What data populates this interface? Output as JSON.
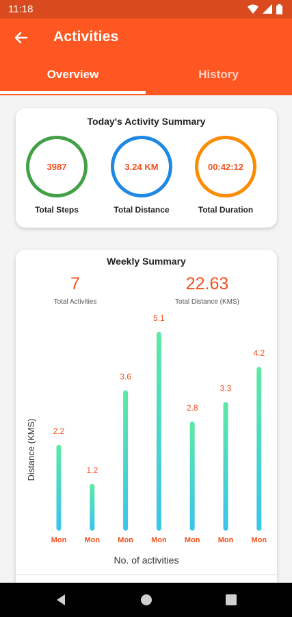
{
  "status_bar": {
    "time": "11:18",
    "icons": [
      "wifi-icon",
      "signal-icon",
      "battery-icon"
    ]
  },
  "app_bar": {
    "title": "Activities",
    "back_icon": "arrow-left-icon"
  },
  "tabs": [
    {
      "label": "Overview",
      "selected": true
    },
    {
      "label": "History",
      "selected": false
    }
  ],
  "today": {
    "title": "Today's Activity Summary",
    "steps": {
      "value": "3987",
      "label": "Total Steps"
    },
    "distance": {
      "value": "3.24 KM",
      "label": "Total Distance"
    },
    "duration": {
      "value": "00:42:12",
      "label": "Total Duration"
    }
  },
  "weekly": {
    "title": "Weekly Summary",
    "total_activities": {
      "value": "7",
      "label": "Total Activities"
    },
    "total_distance": {
      "value": "22.63",
      "label": "Total Distance (KMS)"
    }
  },
  "chart_data": {
    "type": "bar",
    "categories": [
      "Mon",
      "Mon",
      "Mon",
      "Mon",
      "Mon",
      "Mon",
      "Mon"
    ],
    "values": [
      2.2,
      1.2,
      3.6,
      5.1,
      2.8,
      3.3,
      4.2
    ],
    "data_labels": [
      "2.2",
      "1.2",
      "3.6",
      "5.1",
      "2.8",
      "3.3",
      "4.2"
    ],
    "xlabel": "No. of activities",
    "ylabel": "Distance (KMS)",
    "ylim": [
      0,
      5.1
    ],
    "grid": false,
    "legend": "none"
  },
  "colors": {
    "primary": "#ff5722",
    "status_bar": "#d94a1f",
    "value_text": "#f4511e",
    "ring_steps": "#43a047",
    "ring_distance": "#1e88e5",
    "ring_duration": "#fb8c00",
    "bar_top": "#5ee9a4",
    "bar_bottom": "#39c4ee"
  },
  "nav_bar": {
    "icons": [
      "back-nav-icon",
      "home-nav-icon",
      "recents-nav-icon"
    ]
  }
}
